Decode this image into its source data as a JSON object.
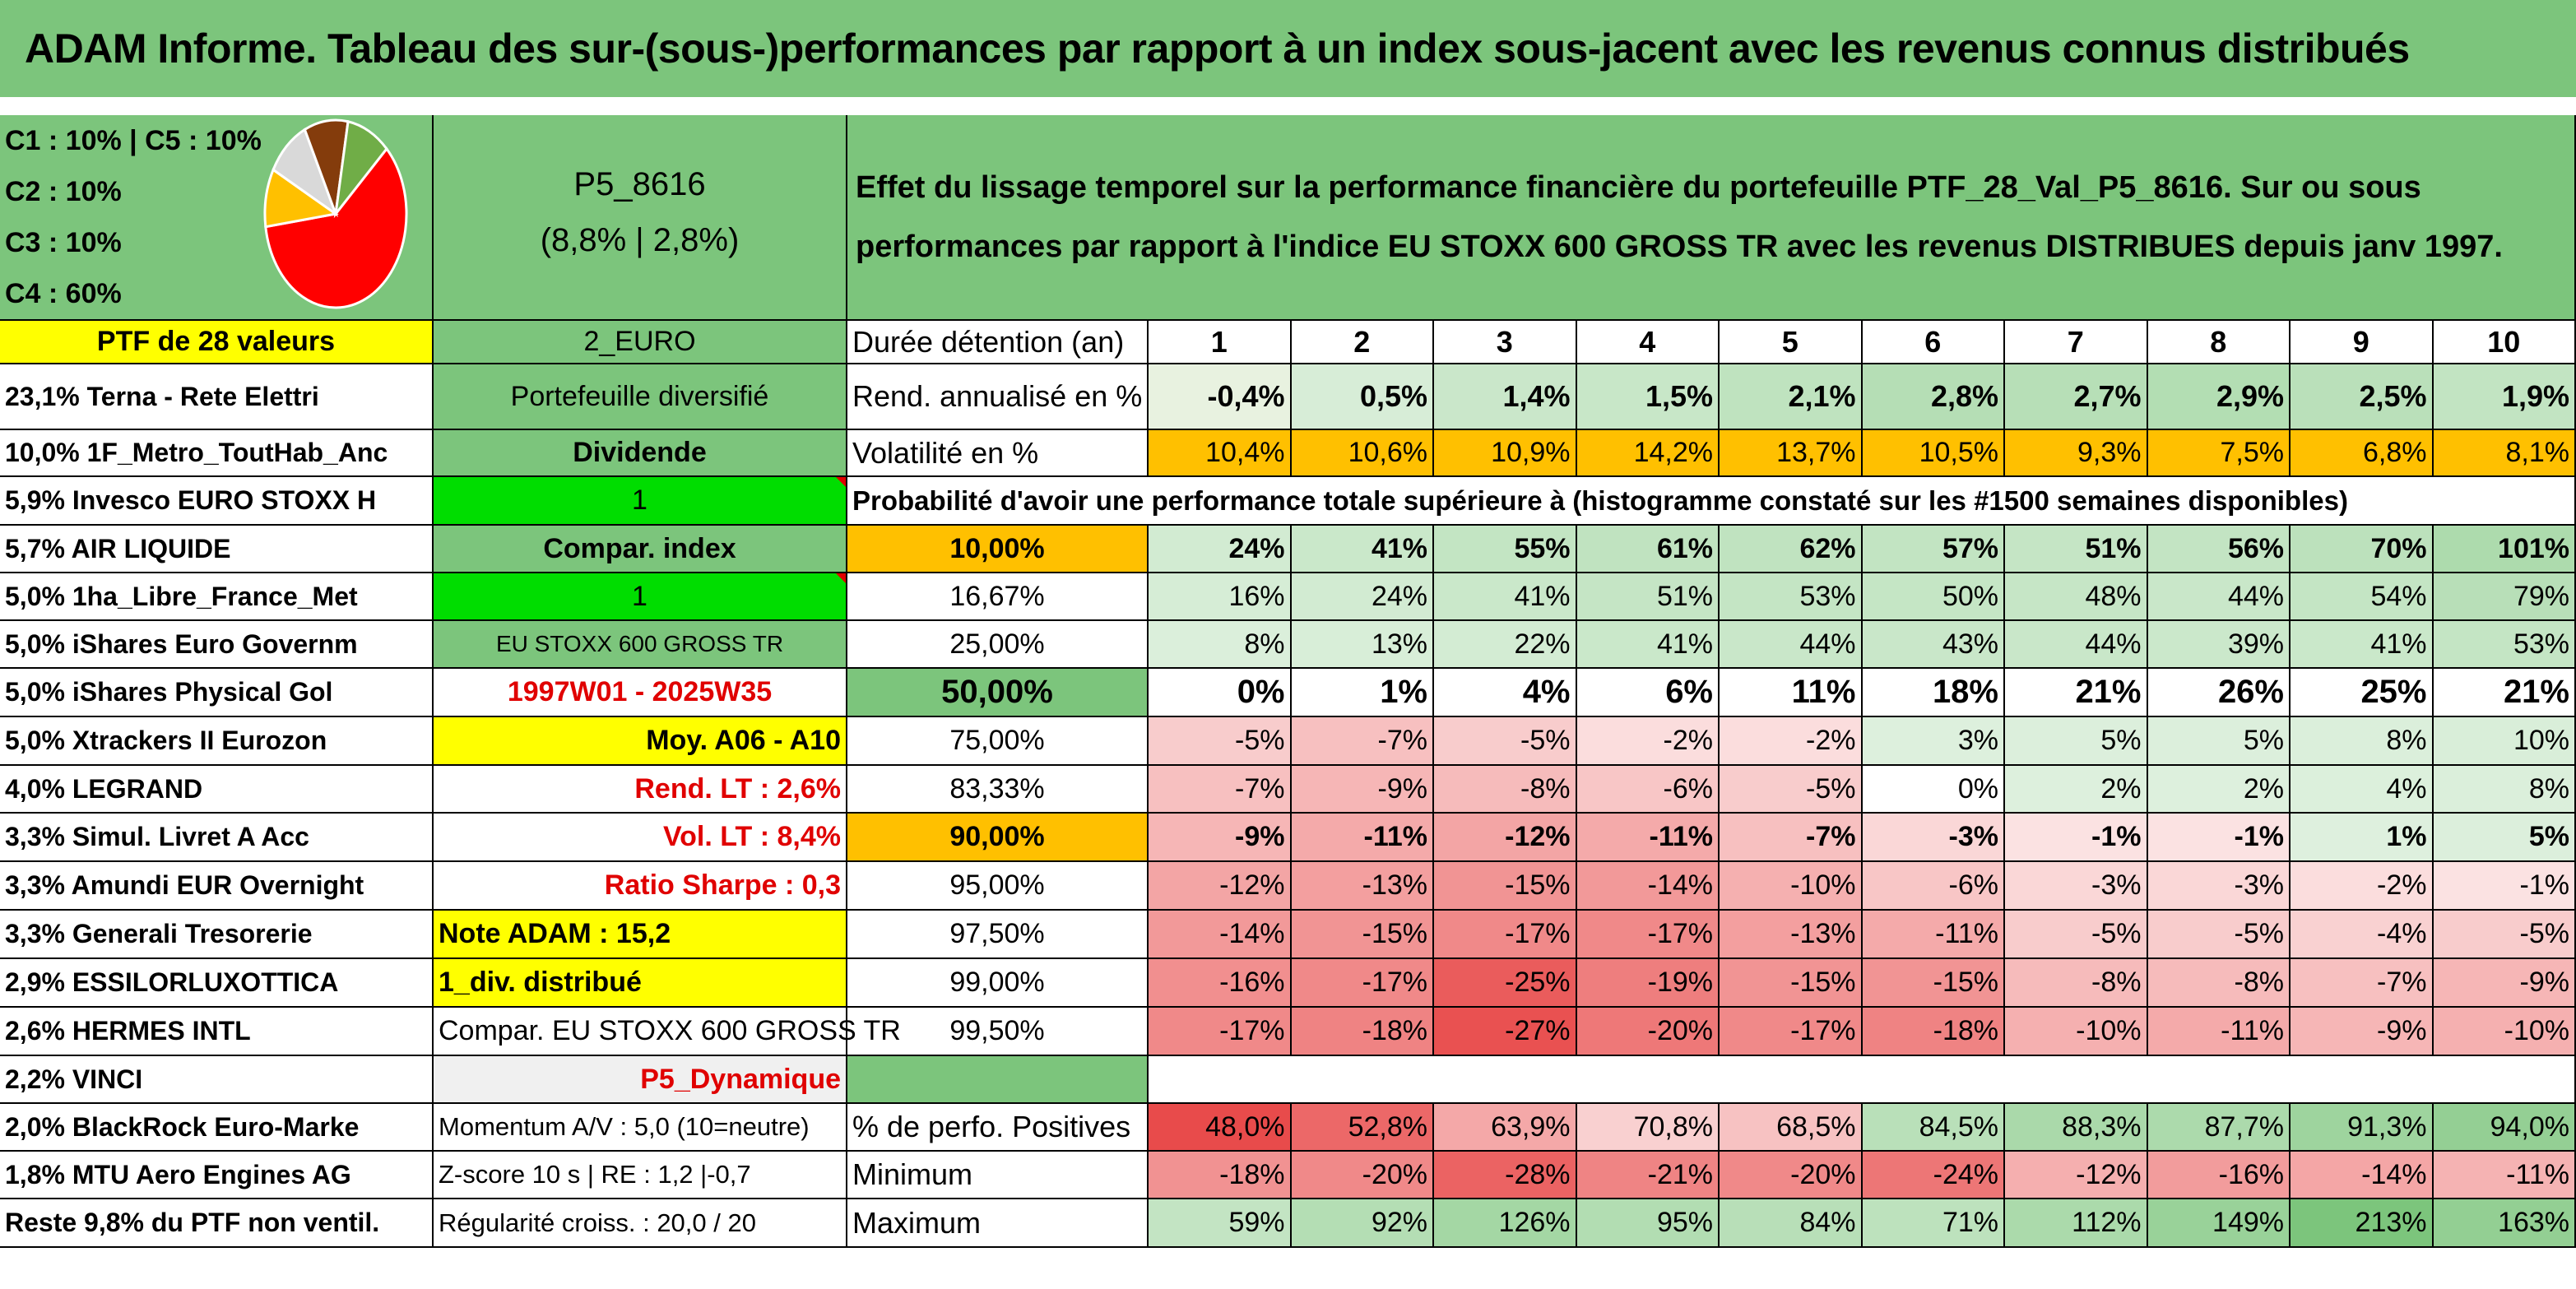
{
  "title": "ADAM Informe. Tableau des sur-(sous-)performances par rapport à un index sous-jacent avec les revenus connus distribués",
  "classes": [
    "C1 : 10% | C5 : 10%",
    "C2 : 10%",
    "C3 : 10%",
    "C4 : 60%"
  ],
  "pie": [
    {
      "label": "C4",
      "value": 60,
      "color": "#ff0000"
    },
    {
      "label": "C5",
      "value": 10,
      "color": "#ffc000"
    },
    {
      "label": "C1",
      "value": 10,
      "color": "#d9d9d9"
    },
    {
      "label": "C2",
      "value": 10,
      "color": "#843c0c"
    },
    {
      "label": "C3",
      "value": 10,
      "color": "#70ad47"
    }
  ],
  "portfolio_code": "P5_8616",
  "portfolio_perf": "(8,8% | 2,8%)",
  "description": "Effet du lissage temporel sur la performance financière du portefeuille PTF_28_Val_P5_8616. Sur ou sous performances par rapport à l'indice EU STOXX 600 GROSS TR avec les revenus DISTRIBUES depuis janv 1997.",
  "ptf_label": "PTF de 28 valeurs",
  "holdings": [
    "23,1% Terna - Rete Elettri",
    "10,0% 1F_Metro_ToutHab_Anc",
    "5,9% Invesco EURO STOXX H",
    "5,7% AIR LIQUIDE",
    "5,0% 1ha_Libre_France_Met",
    "5,0% iShares Euro Governm",
    "5,0% iShares Physical Gol",
    "5,0% Xtrackers II Eurozon",
    "4,0% LEGRAND",
    "3,3% Simul. Livret A Acc",
    "3,3% Amundi EUR Overnight",
    "3,3% Generali Tresorerie",
    "2,9% ESSILORLUXOTTICA",
    "2,6% HERMES INTL",
    "2,2% VINCI",
    "2,0% BlackRock Euro-Marke",
    "1,8% MTU Aero Engines AG",
    "Reste 9,8% du PTF non ventil."
  ],
  "info_column": [
    "2_EURO",
    "Portefeuille diversifié",
    "Dividende",
    "1",
    "Compar. index",
    "1",
    "EU STOXX 600 GROSS TR",
    "1997W01 - 2025W35",
    "Moy. A06 - A10",
    "Rend. LT : 2,6%",
    "Vol. LT : 8,4%",
    "Ratio Sharpe : 0,3",
    "Note ADAM : 15,2",
    "1_div. distribué",
    "Compar. EU STOXX 600 GROSS TR",
    "P5_Dynamique",
    "Momentum A/V : 5,0 (10=neutre)",
    "Z-score 10 s | RE : 1,2 |-0,7",
    "Régularité croiss. : 20,0 / 20"
  ],
  "metrics_labels": {
    "duree": "Durée détention (an)",
    "rend": "Rend. annualisé en %",
    "vol": "Volatilité en %",
    "proba": "Probabilité d'avoir une performance totale supérieure à (histogramme constaté sur les #1500 semaines disponibles)",
    "positives": "% de perfo. Positives",
    "minimum": "Minimum",
    "maximum": "Maximum"
  },
  "years": [
    "1",
    "2",
    "3",
    "4",
    "5",
    "6",
    "7",
    "8",
    "9",
    "10"
  ],
  "rend": [
    "-0,4%",
    "0,5%",
    "1,4%",
    "1,5%",
    "2,1%",
    "2,8%",
    "2,7%",
    "2,9%",
    "2,5%",
    "1,9%"
  ],
  "vol": [
    "10,4%",
    "10,6%",
    "10,9%",
    "14,2%",
    "13,7%",
    "10,5%",
    "9,3%",
    "7,5%",
    "6,8%",
    "8,1%"
  ],
  "quantiles": [
    {
      "q": "10,00%",
      "values": [
        "24%",
        "41%",
        "55%",
        "61%",
        "62%",
        "57%",
        "51%",
        "56%",
        "70%",
        "101%"
      ]
    },
    {
      "q": "16,67%",
      "values": [
        "16%",
        "24%",
        "41%",
        "51%",
        "53%",
        "50%",
        "48%",
        "44%",
        "54%",
        "79%"
      ]
    },
    {
      "q": "25,00%",
      "values": [
        "8%",
        "13%",
        "22%",
        "41%",
        "44%",
        "43%",
        "44%",
        "39%",
        "41%",
        "53%"
      ]
    },
    {
      "q": "50,00%",
      "values": [
        "0%",
        "1%",
        "4%",
        "6%",
        "11%",
        "18%",
        "21%",
        "26%",
        "25%",
        "21%"
      ]
    },
    {
      "q": "75,00%",
      "values": [
        "-5%",
        "-7%",
        "-5%",
        "-2%",
        "-2%",
        "3%",
        "5%",
        "5%",
        "8%",
        "10%"
      ]
    },
    {
      "q": "83,33%",
      "values": [
        "-7%",
        "-9%",
        "-8%",
        "-6%",
        "-5%",
        "0%",
        "2%",
        "2%",
        "4%",
        "8%"
      ]
    },
    {
      "q": "90,00%",
      "values": [
        "-9%",
        "-11%",
        "-12%",
        "-11%",
        "-7%",
        "-3%",
        "-1%",
        "-1%",
        "1%",
        "5%"
      ]
    },
    {
      "q": "95,00%",
      "values": [
        "-12%",
        "-13%",
        "-15%",
        "-14%",
        "-10%",
        "-6%",
        "-3%",
        "-3%",
        "-2%",
        "-1%"
      ]
    },
    {
      "q": "97,50%",
      "values": [
        "-14%",
        "-15%",
        "-17%",
        "-17%",
        "-13%",
        "-11%",
        "-5%",
        "-5%",
        "-4%",
        "-5%"
      ]
    },
    {
      "q": "99,00%",
      "values": [
        "-16%",
        "-17%",
        "-25%",
        "-19%",
        "-15%",
        "-15%",
        "-8%",
        "-8%",
        "-7%",
        "-9%"
      ]
    },
    {
      "q": "99,50%",
      "values": [
        "-17%",
        "-18%",
        "-27%",
        "-20%",
        "-17%",
        "-18%",
        "-10%",
        "-11%",
        "-9%",
        "-10%"
      ]
    }
  ],
  "positives": [
    "48,0%",
    "52,8%",
    "63,9%",
    "70,8%",
    "68,5%",
    "84,5%",
    "88,3%",
    "87,7%",
    "91,3%",
    "94,0%"
  ],
  "minimum": [
    "-18%",
    "-20%",
    "-28%",
    "-21%",
    "-20%",
    "-24%",
    "-12%",
    "-16%",
    "-14%",
    "-11%"
  ],
  "maximum": [
    "59%",
    "92%",
    "126%",
    "95%",
    "84%",
    "71%",
    "112%",
    "149%",
    "213%",
    "163%"
  ],
  "colors": {
    "header_green": "#7cc57c",
    "yellow": "#ffff00",
    "orange": "#ffc000",
    "bright_green": "#00dd00",
    "red_text": "#e00000"
  }
}
